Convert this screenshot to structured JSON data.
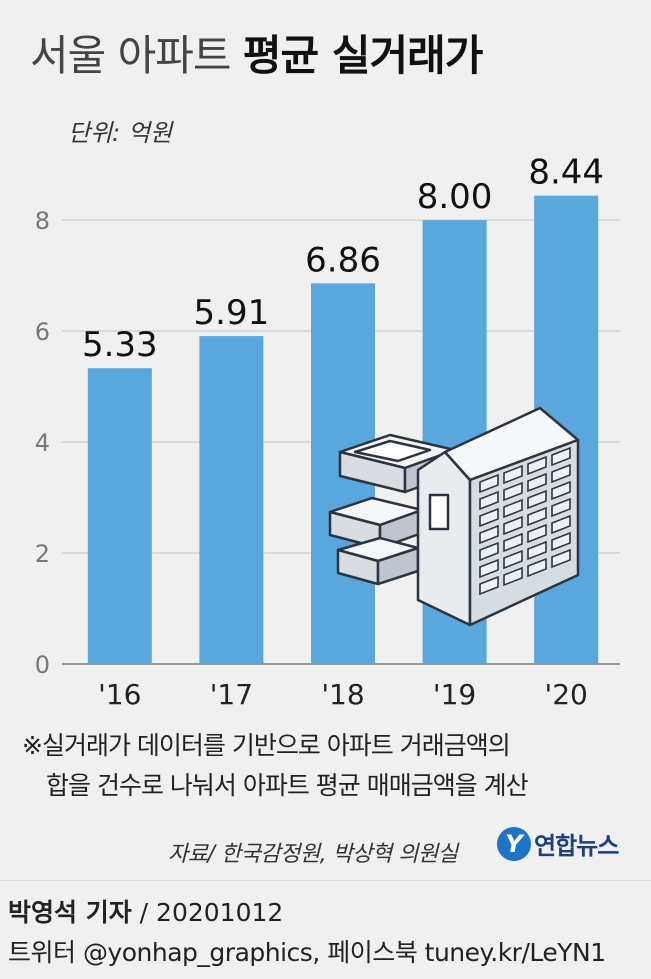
{
  "title_light": "서울 아파트",
  "title_bold": "평균 실거래가",
  "note_line1": "※실거래가 데이터를 기반으로 아파트 거래금액의",
  "note_line2": "합을 건수로 나눠서 아파트 평균 매매금액을 계산",
  "source": "자료/ 한국감정원, 박상혁 의원실",
  "logo_text": "연합뉴스",
  "reporter": "박영석 기자",
  "date": "/  20201012",
  "social": "트위터 @yonhap_graphics, 페이스북 tuney.kr/LeYN1",
  "colors": {
    "bar": "#5aa7de",
    "grid": "#d3d3d3",
    "axis": "#999999"
  },
  "icons": [
    "apartment-building-icon",
    "stacked-blocks-icon"
  ],
  "chart_data": {
    "type": "bar",
    "unit_label": "단위: 억원",
    "categories": [
      "'16",
      "'17",
      "'18",
      "'19",
      "'20"
    ],
    "values": [
      5.33,
      5.91,
      6.86,
      8.0,
      8.44
    ],
    "value_labels": [
      "5.33",
      "5.91",
      "6.86",
      "8.00",
      "8.44"
    ],
    "yticks": [
      0,
      2,
      4,
      6,
      8
    ],
    "ylim": [
      0,
      10.2
    ],
    "grid": true
  }
}
